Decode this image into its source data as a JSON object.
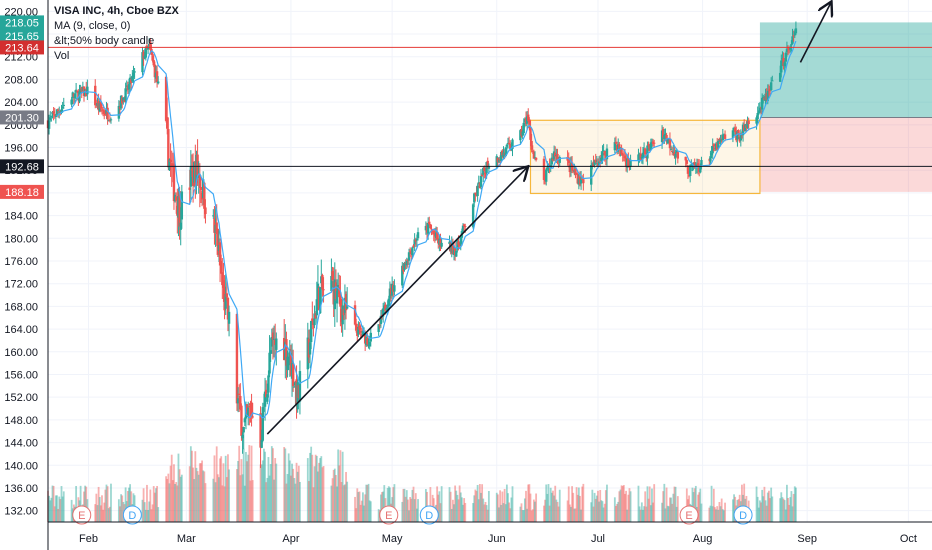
{
  "legend": {
    "title": "VISA INC, 4h, Cboe BZX",
    "ma": "MA (9, close, 0)",
    "indicator": "&lt;50% body candle",
    "vol": "Vol"
  },
  "chart_data": {
    "type": "candlestick",
    "ylim": [
      130,
      222
    ],
    "xlim": [
      "2020-01-20",
      "2020-10-08"
    ],
    "y_ticks": [
      132,
      136,
      140,
      144,
      148,
      152,
      156,
      160,
      164,
      168,
      172,
      176,
      180,
      184,
      188,
      192,
      196,
      200,
      204,
      208,
      212,
      216,
      220
    ],
    "x_ticks": [
      {
        "label": "Feb",
        "date": "2020-02-01"
      },
      {
        "label": "Mar",
        "date": "2020-03-01"
      },
      {
        "label": "Apr",
        "date": "2020-04-01"
      },
      {
        "label": "May",
        "date": "2020-05-01"
      },
      {
        "label": "Jun",
        "date": "2020-06-01"
      },
      {
        "label": "Jul",
        "date": "2020-07-01"
      },
      {
        "label": "Aug",
        "date": "2020-08-01"
      },
      {
        "label": "Sep",
        "date": "2020-09-01"
      },
      {
        "label": "Oct",
        "date": "2020-10-01"
      }
    ],
    "price_path": [
      {
        "date": "2020-01-20",
        "close": 200.5
      },
      {
        "date": "2020-01-27",
        "close": 205.0
      },
      {
        "date": "2020-02-01",
        "close": 206.0
      },
      {
        "date": "2020-02-04",
        "close": 203.0
      },
      {
        "date": "2020-02-08",
        "close": 201.5
      },
      {
        "date": "2020-02-12",
        "close": 205.5
      },
      {
        "date": "2020-02-17",
        "close": 212.0
      },
      {
        "date": "2020-02-19",
        "close": 213.6
      },
      {
        "date": "2020-02-22",
        "close": 206.0
      },
      {
        "date": "2020-02-24",
        "close": 198.0
      },
      {
        "date": "2020-02-26",
        "close": 190.0
      },
      {
        "date": "2020-02-28",
        "close": 185.0
      },
      {
        "date": "2020-03-02",
        "close": 190.0
      },
      {
        "date": "2020-03-04",
        "close": 192.5
      },
      {
        "date": "2020-03-07",
        "close": 186.0
      },
      {
        "date": "2020-03-10",
        "close": 180.0
      },
      {
        "date": "2020-03-12",
        "close": 170.0
      },
      {
        "date": "2020-03-14",
        "close": 164.0
      },
      {
        "date": "2020-03-16",
        "close": 152.0
      },
      {
        "date": "2020-03-18",
        "close": 146.0
      },
      {
        "date": "2020-03-20",
        "close": 150.0
      },
      {
        "date": "2020-03-23",
        "close": 145.0
      },
      {
        "date": "2020-03-26",
        "close": 160.0
      },
      {
        "date": "2020-03-29",
        "close": 163.0
      },
      {
        "date": "2020-04-01",
        "close": 158.0
      },
      {
        "date": "2020-04-03",
        "close": 152.0
      },
      {
        "date": "2020-04-06",
        "close": 160.0
      },
      {
        "date": "2020-04-09",
        "close": 170.0
      },
      {
        "date": "2020-04-13",
        "close": 172.0
      },
      {
        "date": "2020-04-16",
        "close": 168.0
      },
      {
        "date": "2020-04-20",
        "close": 164.0
      },
      {
        "date": "2020-04-24",
        "close": 162.0
      },
      {
        "date": "2020-04-27",
        "close": 164.0
      },
      {
        "date": "2020-04-30",
        "close": 170.0
      },
      {
        "date": "2020-05-05",
        "close": 176.0
      },
      {
        "date": "2020-05-08",
        "close": 180.0
      },
      {
        "date": "2020-05-12",
        "close": 182.0
      },
      {
        "date": "2020-05-15",
        "close": 179.0
      },
      {
        "date": "2020-05-20",
        "close": 178.0
      },
      {
        "date": "2020-05-26",
        "close": 188.0
      },
      {
        "date": "2020-05-29",
        "close": 193.0
      },
      {
        "date": "2020-06-03",
        "close": 195.0
      },
      {
        "date": "2020-06-08",
        "close": 198.0
      },
      {
        "date": "2020-06-10",
        "close": 201.5
      },
      {
        "date": "2020-06-12",
        "close": 194.0
      },
      {
        "date": "2020-06-15",
        "close": 190.0
      },
      {
        "date": "2020-06-18",
        "close": 195.0
      },
      {
        "date": "2020-06-22",
        "close": 193.0
      },
      {
        "date": "2020-06-26",
        "close": 190.0
      },
      {
        "date": "2020-06-30",
        "close": 193.0
      },
      {
        "date": "2020-07-06",
        "close": 197.0
      },
      {
        "date": "2020-07-10",
        "close": 193.0
      },
      {
        "date": "2020-07-15",
        "close": 195.0
      },
      {
        "date": "2020-07-20",
        "close": 199.0
      },
      {
        "date": "2020-07-24",
        "close": 195.0
      },
      {
        "date": "2020-07-28",
        "close": 192.0
      },
      {
        "date": "2020-08-01",
        "close": 193.0
      },
      {
        "date": "2020-08-05",
        "close": 196.0
      },
      {
        "date": "2020-08-09",
        "close": 199.0
      },
      {
        "date": "2020-08-12",
        "close": 198.0
      },
      {
        "date": "2020-08-15",
        "close": 201.0
      },
      {
        "date": "2020-08-18",
        "close": 203.0
      },
      {
        "date": "2020-08-21",
        "close": 206.0
      },
      {
        "date": "2020-08-24",
        "close": 210.0
      },
      {
        "date": "2020-08-27",
        "close": 214.0
      },
      {
        "date": "2020-08-29",
        "close": 216.5
      }
    ],
    "horizontal_lines": [
      {
        "price": 213.64,
        "color": "#e53935"
      },
      {
        "price": 192.68,
        "color": "#131722"
      }
    ],
    "price_tags": [
      {
        "price": 218.05,
        "label": "218.05",
        "color": "#26a69a"
      },
      {
        "price": 215.65,
        "label": "215.65",
        "color": "#26a69a"
      },
      {
        "price": 213.64,
        "label": "213.64",
        "color": "#d32f2f"
      },
      {
        "price": 201.3,
        "label": "201.30",
        "color": "#787b86"
      },
      {
        "price": 192.68,
        "label": "192.68",
        "color": "#131722"
      },
      {
        "price": 188.18,
        "label": "188.18",
        "color": "#ef5350"
      }
    ],
    "range_box": {
      "start": "2020-06-11",
      "end": "2020-08-18",
      "top": 200.8,
      "bottom": 187.9,
      "color": "#f6b73c"
    },
    "long_position": {
      "start": "2020-08-18",
      "end": "2020-10-08",
      "target": 218.05,
      "entry": 201.3,
      "stop": 188.18,
      "profit_color": "#26a69a",
      "loss_color": "#ef5350"
    },
    "arrows": [
      {
        "from": {
          "date": "2020-03-25",
          "price": 145.5
        },
        "to": {
          "date": "2020-06-10",
          "price": 192.5
        }
      },
      {
        "from": {
          "date": "2020-08-30",
          "price": 211.0
        },
        "to": {
          "date": "2020-09-08",
          "price": 221.5
        }
      }
    ],
    "earnings_markers": [
      {
        "date": "2020-01-30",
        "label": "E",
        "color": "#e57373"
      },
      {
        "date": "2020-02-14",
        "label": "D",
        "color": "#42a5f5"
      },
      {
        "date": "2020-04-30",
        "label": "E",
        "color": "#e57373"
      },
      {
        "date": "2020-05-12",
        "label": "D",
        "color": "#42a5f5"
      },
      {
        "date": "2020-07-28",
        "label": "E",
        "color": "#e57373"
      },
      {
        "date": "2020-08-13",
        "label": "D",
        "color": "#42a5f5"
      }
    ],
    "colors": {
      "up": "#26a69a",
      "down": "#ef5350",
      "ma": "#3fa9f5",
      "grid": "#f0f3fa"
    }
  }
}
